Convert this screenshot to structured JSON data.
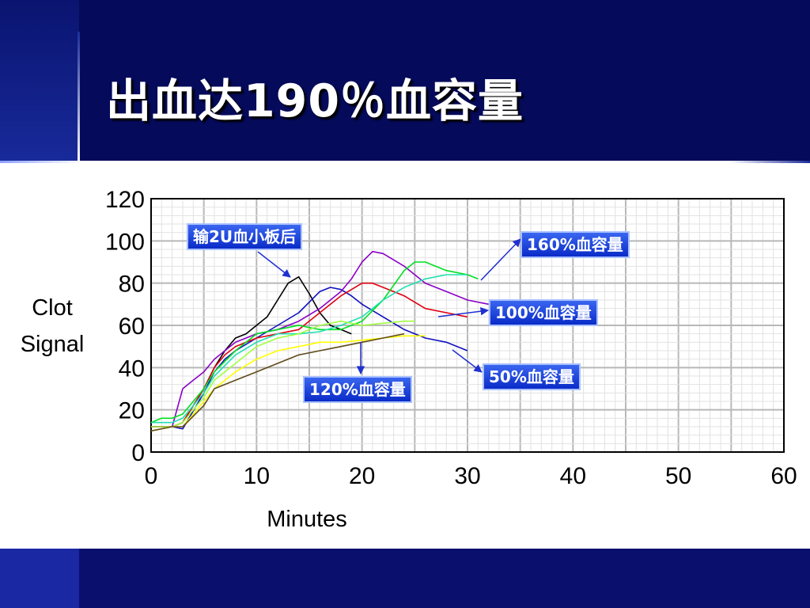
{
  "slide": {
    "title": "出血达190％血容量"
  },
  "chart_data": {
    "type": "line",
    "title": "",
    "xlabel": "Minutes",
    "ylabel_lines": [
      "Clot",
      "Signal"
    ],
    "xlim": [
      0,
      60
    ],
    "ylim": [
      0,
      120
    ],
    "x_ticks": [
      0,
      10,
      20,
      30,
      40,
      50,
      60
    ],
    "y_ticks": [
      0,
      20,
      40,
      60,
      80,
      100,
      120
    ],
    "grid": true,
    "series": [
      {
        "color": "#000000",
        "points": [
          [
            0,
            12
          ],
          [
            2,
            12
          ],
          [
            3,
            14
          ],
          [
            5,
            30
          ],
          [
            6,
            40
          ],
          [
            7,
            48
          ],
          [
            8,
            54
          ],
          [
            9,
            56
          ],
          [
            10,
            60
          ],
          [
            11,
            64
          ],
          [
            12,
            72
          ],
          [
            13,
            80
          ],
          [
            14,
            83
          ],
          [
            15,
            75
          ],
          [
            16,
            66
          ],
          [
            17,
            60
          ],
          [
            18,
            58
          ],
          [
            19,
            56
          ]
        ]
      },
      {
        "color": "#1010c0",
        "points": [
          [
            0,
            12
          ],
          [
            2,
            12
          ],
          [
            3,
            11
          ],
          [
            5,
            28
          ],
          [
            6,
            38
          ],
          [
            7,
            44
          ],
          [
            8,
            48
          ],
          [
            10,
            54
          ],
          [
            12,
            60
          ],
          [
            14,
            66
          ],
          [
            16,
            76
          ],
          [
            17,
            78
          ],
          [
            18,
            77
          ],
          [
            19,
            74
          ],
          [
            20,
            70
          ],
          [
            22,
            64
          ],
          [
            24,
            58
          ],
          [
            26,
            54
          ],
          [
            28,
            52
          ],
          [
            30,
            48
          ]
        ]
      },
      {
        "color": "#8c00c8",
        "points": [
          [
            0,
            12
          ],
          [
            2,
            12
          ],
          [
            3,
            30
          ],
          [
            4,
            34
          ],
          [
            5,
            38
          ],
          [
            6,
            44
          ],
          [
            7,
            48
          ],
          [
            8,
            52
          ],
          [
            10,
            56
          ],
          [
            12,
            58
          ],
          [
            14,
            62
          ],
          [
            16,
            68
          ],
          [
            18,
            76
          ],
          [
            19,
            82
          ],
          [
            20,
            90
          ],
          [
            21,
            95
          ],
          [
            22,
            94
          ],
          [
            24,
            88
          ],
          [
            26,
            80
          ],
          [
            28,
            76
          ],
          [
            30,
            72
          ],
          [
            32,
            70
          ]
        ]
      },
      {
        "color": "#e00010",
        "points": [
          [
            0,
            12
          ],
          [
            2,
            12
          ],
          [
            3,
            14
          ],
          [
            5,
            30
          ],
          [
            6,
            40
          ],
          [
            7,
            46
          ],
          [
            8,
            50
          ],
          [
            10,
            54
          ],
          [
            12,
            56
          ],
          [
            14,
            58
          ],
          [
            16,
            66
          ],
          [
            18,
            74
          ],
          [
            20,
            80
          ],
          [
            21,
            80
          ],
          [
            22,
            78
          ],
          [
            24,
            74
          ],
          [
            26,
            68
          ],
          [
            28,
            66
          ],
          [
            30,
            64
          ]
        ]
      },
      {
        "color": "#00e020",
        "points": [
          [
            0,
            14
          ],
          [
            1,
            16
          ],
          [
            2,
            16
          ],
          [
            3,
            18
          ],
          [
            5,
            30
          ],
          [
            6,
            38
          ],
          [
            8,
            48
          ],
          [
            10,
            56
          ],
          [
            12,
            58
          ],
          [
            14,
            60
          ],
          [
            16,
            58
          ],
          [
            18,
            58
          ],
          [
            20,
            62
          ],
          [
            22,
            72
          ],
          [
            24,
            86
          ],
          [
            25,
            90
          ],
          [
            26,
            90
          ],
          [
            28,
            86
          ],
          [
            30,
            84
          ],
          [
            31,
            82
          ]
        ]
      },
      {
        "color": "#20e0b0",
        "points": [
          [
            0,
            14
          ],
          [
            2,
            14
          ],
          [
            3,
            16
          ],
          [
            5,
            28
          ],
          [
            6,
            36
          ],
          [
            8,
            46
          ],
          [
            10,
            52
          ],
          [
            12,
            56
          ],
          [
            14,
            56
          ],
          [
            16,
            57
          ],
          [
            18,
            60
          ],
          [
            20,
            64
          ],
          [
            22,
            72
          ],
          [
            24,
            78
          ],
          [
            26,
            82
          ],
          [
            28,
            84
          ],
          [
            30,
            84
          ]
        ]
      },
      {
        "color": "#a0ff40",
        "points": [
          [
            0,
            12
          ],
          [
            2,
            12
          ],
          [
            3,
            14
          ],
          [
            5,
            26
          ],
          [
            6,
            34
          ],
          [
            8,
            42
          ],
          [
            10,
            50
          ],
          [
            12,
            54
          ],
          [
            14,
            56
          ],
          [
            16,
            60
          ],
          [
            18,
            62
          ],
          [
            20,
            60
          ],
          [
            22,
            61
          ],
          [
            24,
            62
          ],
          [
            25,
            62
          ]
        ]
      },
      {
        "color": "#ffff00",
        "points": [
          [
            0,
            10
          ],
          [
            2,
            12
          ],
          [
            3,
            12
          ],
          [
            5,
            24
          ],
          [
            6,
            30
          ],
          [
            8,
            38
          ],
          [
            10,
            44
          ],
          [
            12,
            48
          ],
          [
            14,
            50
          ],
          [
            16,
            52
          ],
          [
            18,
            52
          ],
          [
            20,
            53
          ],
          [
            22,
            54
          ],
          [
            24,
            55
          ],
          [
            26,
            55
          ]
        ]
      },
      {
        "color": "#604a1a",
        "points": [
          [
            0,
            10
          ],
          [
            2,
            12
          ],
          [
            3,
            12
          ],
          [
            5,
            22
          ],
          [
            6,
            30
          ],
          [
            8,
            34
          ],
          [
            10,
            38
          ],
          [
            12,
            42
          ],
          [
            14,
            46
          ],
          [
            16,
            48
          ],
          [
            18,
            50
          ],
          [
            20,
            52
          ],
          [
            22,
            54
          ],
          [
            24,
            56
          ]
        ]
      }
    ],
    "annotations": [
      {
        "text": "输2U血小板后"
      },
      {
        "text": "160%血容量"
      },
      {
        "text": "100%血容量"
      },
      {
        "text": "50%血容量"
      },
      {
        "text": "120%血容量"
      }
    ]
  }
}
